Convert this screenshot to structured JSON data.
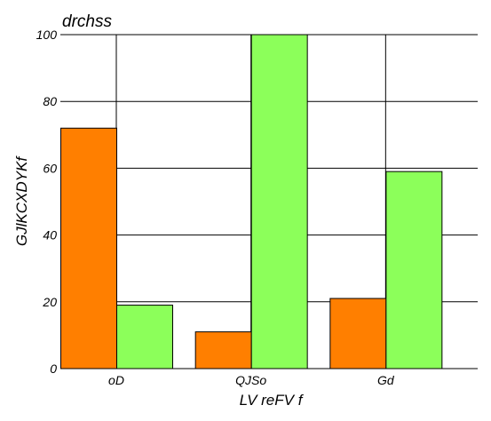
{
  "chart_data": {
    "type": "bar",
    "title": "drchss",
    "xlabel": "LV reFV f",
    "ylabel": "GJlKCXDYKf",
    "categories": [
      "oD",
      "QJSo",
      "Gd"
    ],
    "series": [
      {
        "color": "#ff7f00",
        "values": [
          72,
          11,
          21
        ]
      },
      {
        "color": "#8cff5a",
        "values": [
          19,
          100,
          59
        ]
      }
    ],
    "ylim": [
      0,
      100
    ],
    "yticks": [
      0,
      20,
      40,
      60,
      80,
      100
    ],
    "grid": true,
    "legend": "none"
  }
}
